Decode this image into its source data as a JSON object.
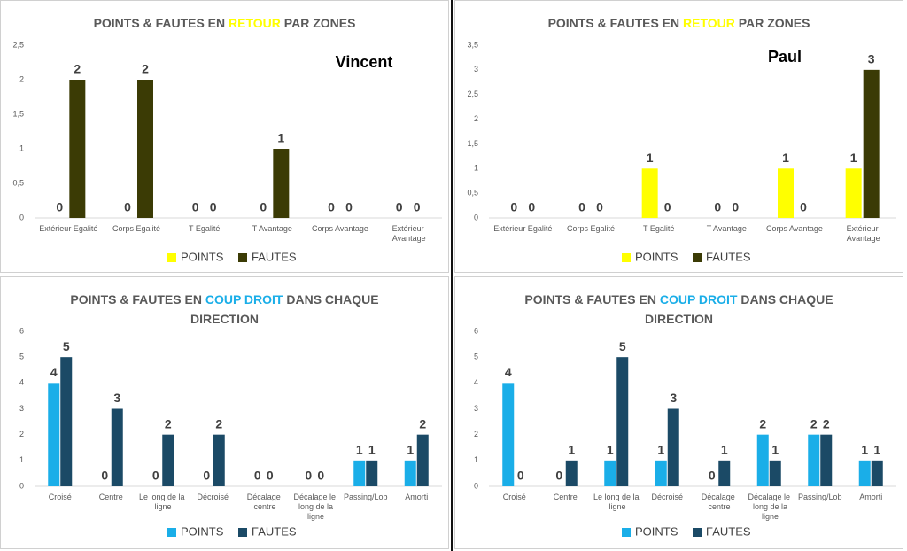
{
  "chart_data": [
    {
      "type": "bar",
      "title": [
        {
          "text": "POINTS & FAUTES EN"
        },
        {
          "text": "RETOUR",
          "color": "#ffff00"
        },
        {
          "text": "PAR ZONES"
        }
      ],
      "annotation": "Vincent",
      "categories": [
        "Extérieur Egalité",
        "Corps Egalité",
        "T Egalité",
        "T Avantage",
        "Corps Avantage",
        "Extérieur Avantage"
      ],
      "series": [
        {
          "name": "POINTS",
          "color": "#ffff00",
          "values": [
            0,
            0,
            0,
            0,
            0,
            0
          ]
        },
        {
          "name": "FAUTES",
          "color": "#3b3b05",
          "values": [
            2,
            2,
            0,
            1,
            0,
            0
          ]
        }
      ],
      "ylim": [
        0,
        2.5
      ],
      "yticks": [
        0,
        {
          "value": 0.5,
          "label": "0,5"
        },
        1,
        {
          "value": 1.5,
          "label": "1,5"
        },
        2,
        {
          "value": 2.5,
          "label": "2,5"
        }
      ]
    },
    {
      "type": "bar",
      "title": [
        {
          "text": "POINTS & FAUTES EN"
        },
        {
          "text": "RETOUR",
          "color": "#ffff00"
        },
        {
          "text": "PAR ZONES"
        }
      ],
      "annotation": "Paul",
      "categories": [
        "Extérieur Egalité",
        "Corps Egalité",
        "T Egalité",
        "T Avantage",
        "Corps Avantage",
        "Extérieur Avantage"
      ],
      "series": [
        {
          "name": "POINTS",
          "color": "#ffff00",
          "values": [
            0,
            0,
            1,
            0,
            1,
            1
          ]
        },
        {
          "name": "FAUTES",
          "color": "#3b3b05",
          "values": [
            0,
            0,
            0,
            0,
            0,
            3
          ]
        }
      ],
      "ylim": [
        0,
        3.5
      ],
      "yticks": [
        0,
        {
          "value": 0.5,
          "label": "0,5"
        },
        1,
        {
          "value": 1.5,
          "label": "1,5"
        },
        2,
        {
          "value": 2.5,
          "label": "2,5"
        },
        3,
        {
          "value": 3.5,
          "label": "3,5"
        }
      ]
    },
    {
      "type": "bar",
      "title": [
        {
          "text": "POINTS & FAUTES EN"
        },
        {
          "text": "COUP DROIT",
          "color": "#1aaee8"
        },
        {
          "text": "DANS CHAQUE DIRECTION"
        }
      ],
      "categories": [
        "Croisé",
        "Centre",
        "Le long de la ligne",
        "Décroisé",
        "Décalage centre",
        "Décalage le long de la ligne",
        "Passing/Lob",
        "Amorti"
      ],
      "series": [
        {
          "name": "POINTS",
          "color": "#1aaee8",
          "values": [
            4,
            0,
            0,
            0,
            0,
            0,
            1,
            1
          ]
        },
        {
          "name": "FAUTES",
          "color": "#1b4a66",
          "values": [
            5,
            3,
            2,
            2,
            0,
            0,
            1,
            2
          ]
        }
      ],
      "ylim": [
        0,
        6
      ],
      "yticks": [
        0,
        1,
        2,
        3,
        4,
        5,
        6
      ]
    },
    {
      "type": "bar",
      "title": [
        {
          "text": "POINTS & FAUTES EN"
        },
        {
          "text": "COUP DROIT",
          "color": "#1aaee8"
        },
        {
          "text": "DANS CHAQUE DIRECTION"
        }
      ],
      "categories": [
        "Croisé",
        "Centre",
        "Le long de la ligne",
        "Décroisé",
        "Décalage centre",
        "Décalage le long de la ligne",
        "Passing/Lob",
        "Amorti"
      ],
      "series": [
        {
          "name": "POINTS",
          "color": "#1aaee8",
          "values": [
            4,
            0,
            1,
            1,
            0,
            2,
            2,
            1
          ]
        },
        {
          "name": "FAUTES",
          "color": "#1b4a66",
          "values": [
            0,
            1,
            5,
            3,
            1,
            1,
            2,
            1
          ]
        }
      ],
      "ylim": [
        0,
        6
      ],
      "yticks": [
        0,
        1,
        2,
        3,
        4,
        5,
        6
      ]
    }
  ]
}
